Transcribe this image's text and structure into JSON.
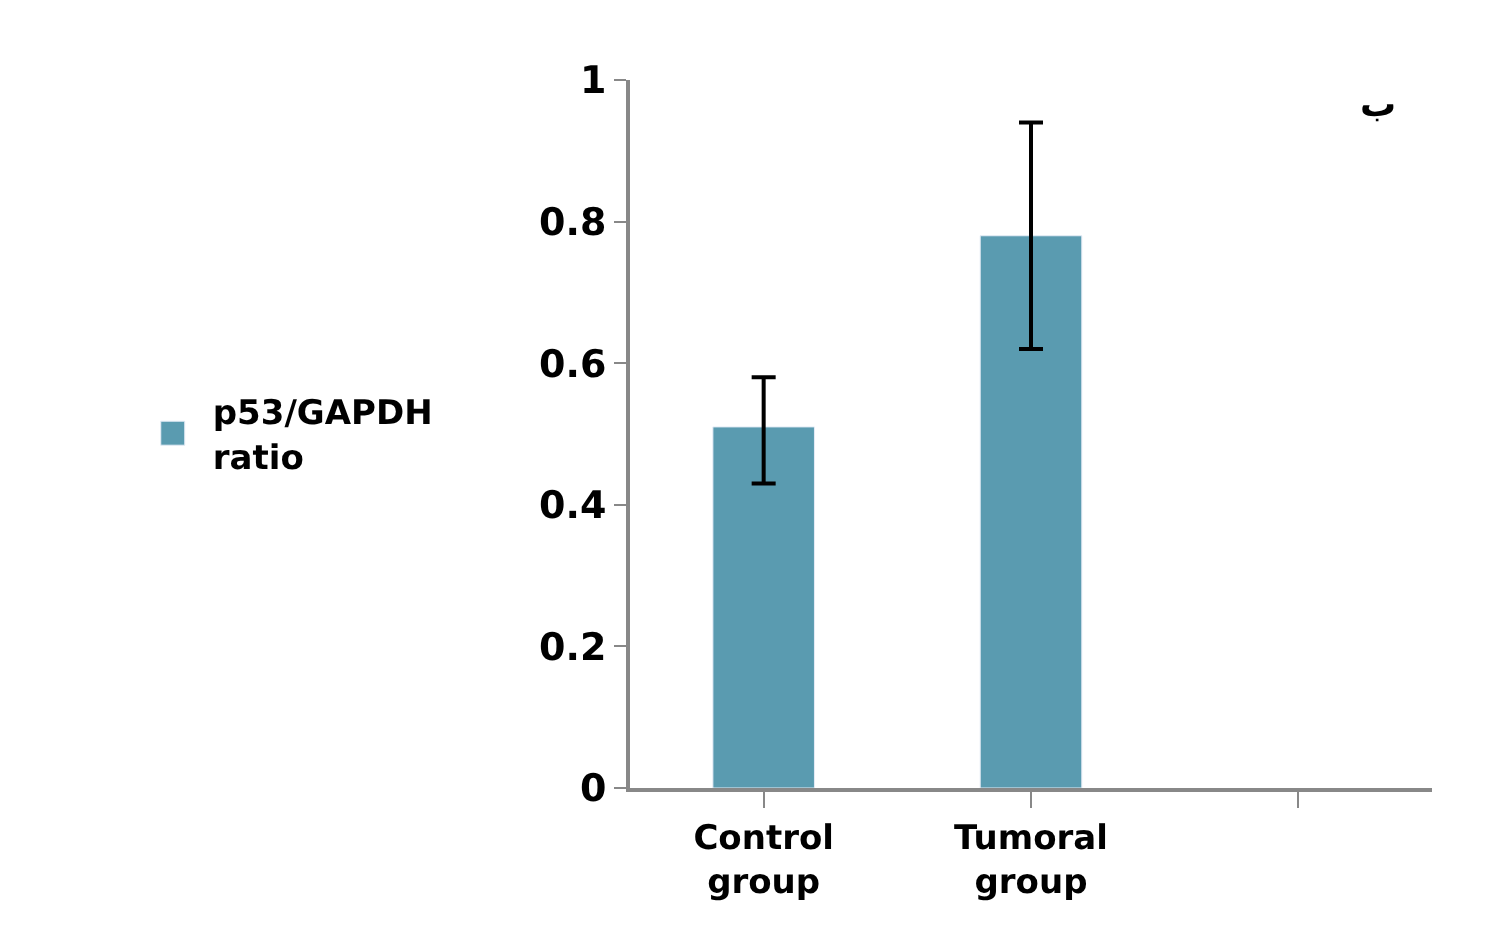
{
  "chart_data": {
    "type": "bar",
    "categories": [
      "Control group",
      "Tumoral group",
      null
    ],
    "series": [
      {
        "name": "p53/GAPDH ratio",
        "color": "#5a9bb0",
        "values": [
          0.51,
          0.78,
          null
        ],
        "errors": [
          [
            0.43,
            0.58
          ],
          [
            0.62,
            0.94
          ],
          null
        ]
      }
    ],
    "ylim": [
      0,
      1
    ],
    "yticks": [
      0,
      0.2,
      0.4,
      0.6,
      0.8,
      1
    ],
    "legend": "left",
    "annotations": [
      "ب"
    ]
  }
}
